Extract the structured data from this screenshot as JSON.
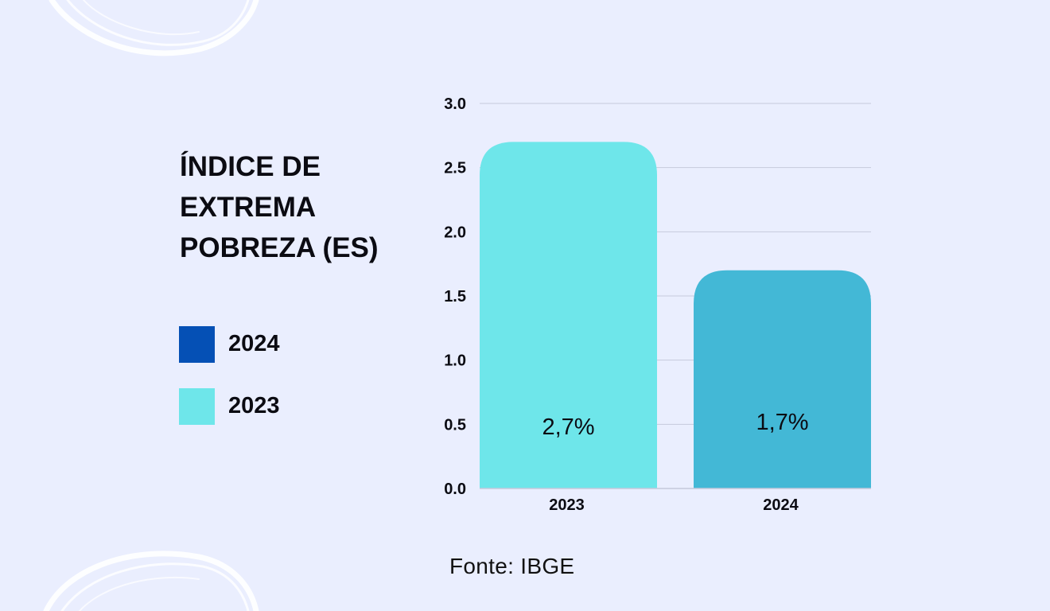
{
  "title": "ÍNDICE DE EXTREMA POBREZA (ES)",
  "legend": [
    {
      "label": "2024",
      "color": "#0550b5"
    },
    {
      "label": "2023",
      "color": "#6ee6ea"
    }
  ],
  "source": "Fonte: IBGE",
  "colors": {
    "background": "#eaeefe",
    "grid": "#c5c9dc",
    "bar_2023": "#6ee6ea",
    "bar_2024": "#43b8d6"
  },
  "chart_data": {
    "type": "bar",
    "categories": [
      "2023",
      "2024"
    ],
    "values": [
      2.7,
      1.7
    ],
    "data_labels": [
      "2,7%",
      "1,7%"
    ],
    "bar_colors": [
      "#6ee6ea",
      "#43b8d6"
    ],
    "title": "ÍNDICE DE EXTREMA POBREZA (ES)",
    "xlabel": "",
    "ylabel": "",
    "ylim": [
      0,
      3
    ],
    "yticks": [
      0,
      0.5,
      1,
      1.5,
      2,
      2.5,
      3
    ],
    "ytick_labels": [
      "0.0",
      "0.5",
      "1.0",
      "1.5",
      "2.0",
      "2.5",
      "3.0"
    ],
    "grid": true,
    "legend_position": "left"
  }
}
